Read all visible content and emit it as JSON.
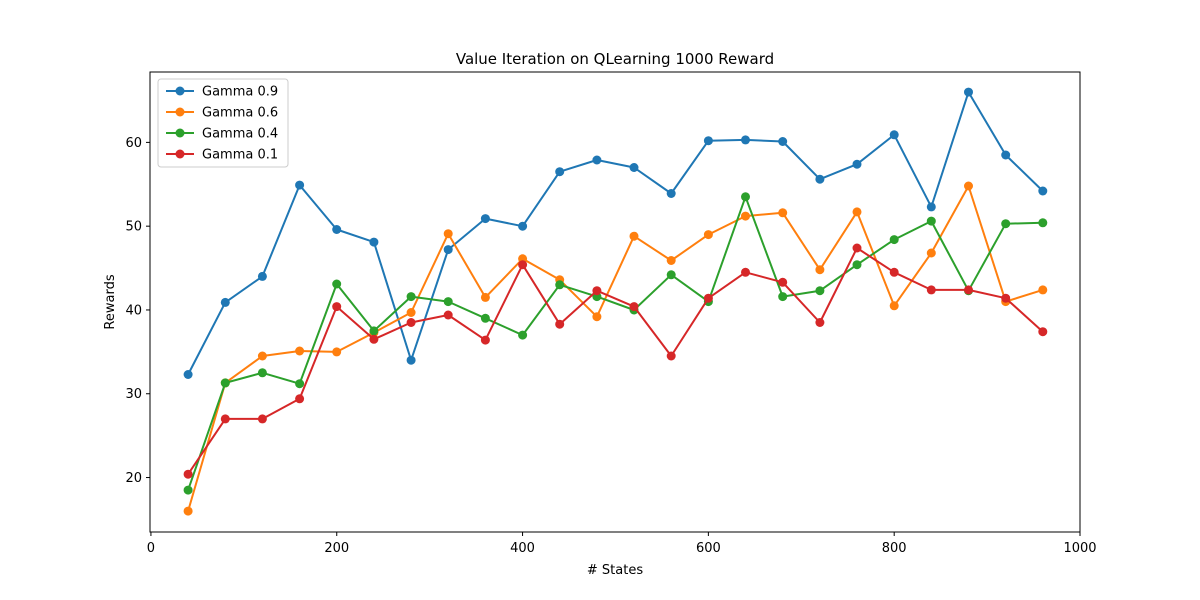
{
  "chart_data": {
    "type": "line",
    "title": "Value Iteration on QLearning 1000  Reward",
    "xlabel": "# States",
    "ylabel": "Rewards",
    "xlim": [
      -1,
      1000
    ],
    "ylim": [
      13.5,
      68.4
    ],
    "xticks": [
      0,
      200,
      400,
      600,
      800,
      1000
    ],
    "yticks": [
      20,
      30,
      40,
      50,
      60
    ],
    "grid": false,
    "legend_position": "upper-left",
    "x": [
      40,
      80,
      120,
      160,
      200,
      240,
      280,
      320,
      360,
      400,
      440,
      480,
      520,
      560,
      600,
      640,
      680,
      720,
      760,
      800,
      840,
      880,
      920,
      960
    ],
    "series": [
      {
        "name": "Gamma 0.9",
        "color": "#1f77b4",
        "values": [
          32.3,
          40.9,
          44.0,
          54.9,
          49.6,
          48.1,
          34.0,
          47.2,
          50.9,
          50.0,
          56.5,
          57.9,
          57.0,
          53.9,
          60.2,
          60.3,
          60.1,
          55.6,
          57.4,
          60.9,
          52.3,
          66.0,
          58.5,
          54.2
        ]
      },
      {
        "name": "Gamma 0.6",
        "color": "#ff7f0e",
        "values": [
          16.0,
          31.3,
          34.5,
          35.1,
          35.0,
          37.3,
          39.7,
          49.1,
          41.5,
          46.1,
          43.6,
          39.2,
          48.8,
          45.9,
          49.0,
          51.2,
          51.6,
          44.8,
          51.7,
          40.5,
          46.8,
          54.8,
          41.0,
          42.4
        ]
      },
      {
        "name": "Gamma 0.4",
        "color": "#2ca02c",
        "values": [
          18.5,
          31.3,
          32.5,
          31.2,
          43.1,
          37.5,
          41.6,
          41.0,
          39.0,
          37.0,
          43.0,
          41.6,
          40.0,
          44.2,
          41.0,
          53.5,
          41.6,
          42.3,
          45.4,
          48.4,
          50.6,
          42.3,
          50.3,
          50.4
        ]
      },
      {
        "name": "Gamma 0.1",
        "color": "#d62728",
        "values": [
          20.4,
          27.0,
          27.0,
          29.4,
          40.4,
          36.5,
          38.5,
          39.4,
          36.4,
          45.4,
          38.3,
          42.3,
          40.4,
          34.5,
          41.4,
          44.5,
          43.3,
          38.5,
          47.4,
          44.5,
          42.4,
          42.4,
          41.4,
          37.4
        ]
      }
    ]
  }
}
